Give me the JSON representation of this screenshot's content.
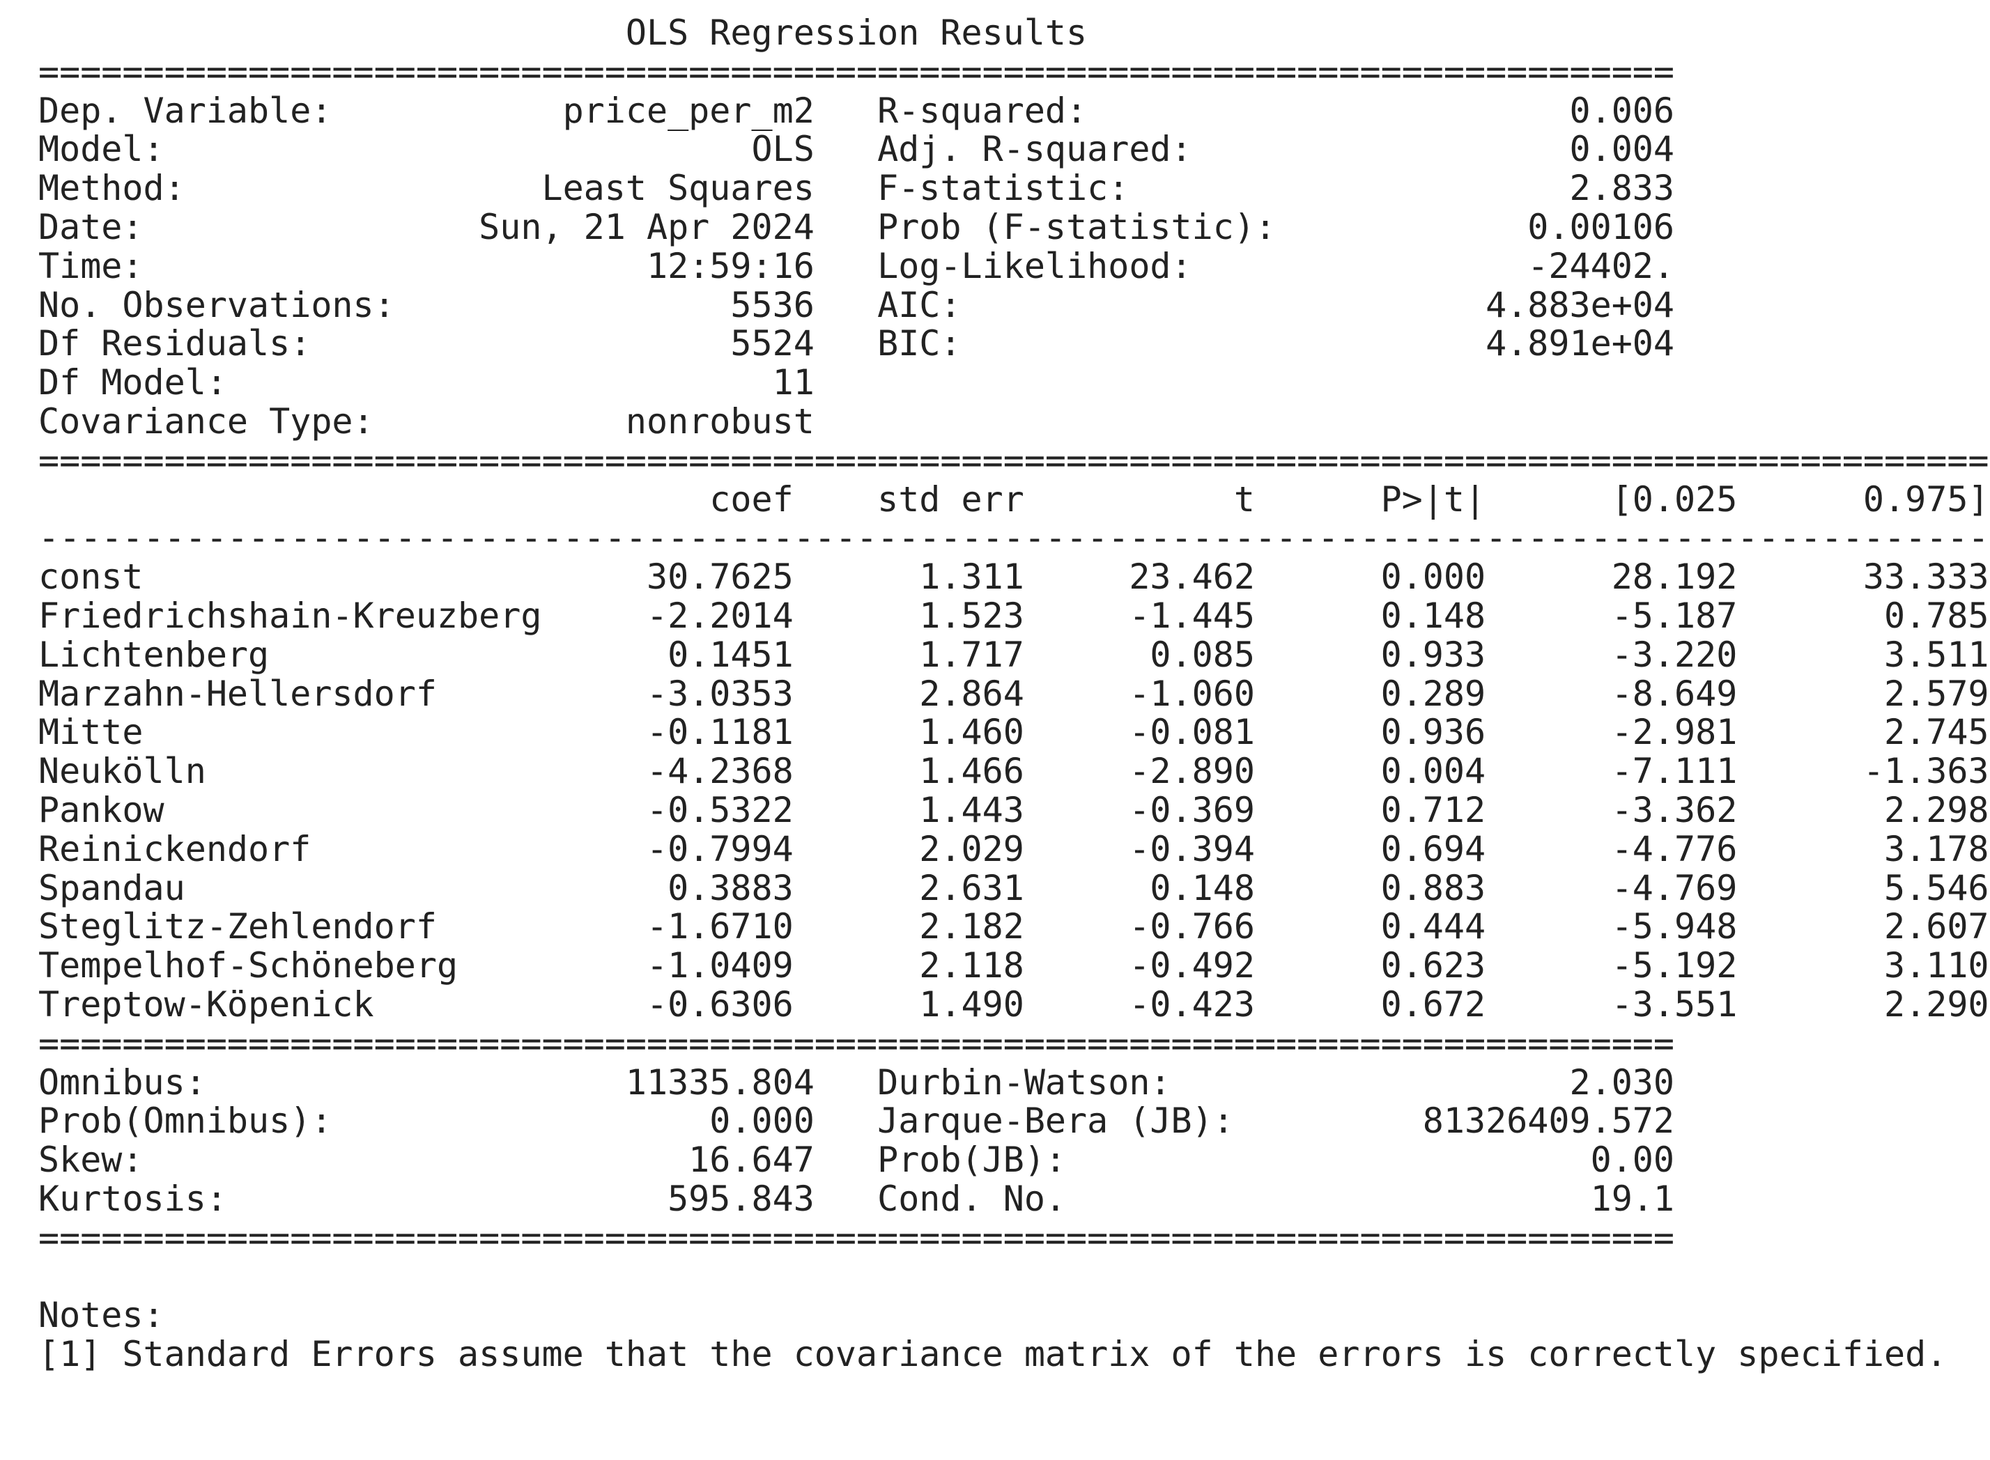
{
  "title": "OLS Regression Results",
  "summary": {
    "rows": [
      {
        "label_left": "Dep. Variable:",
        "value_left": "price_per_m2",
        "label_right": "R-squared:",
        "value_right": "0.006"
      },
      {
        "label_left": "Model:",
        "value_left": "OLS",
        "label_right": "Adj. R-squared:",
        "value_right": "0.004"
      },
      {
        "label_left": "Method:",
        "value_left": "Least Squares",
        "label_right": "F-statistic:",
        "value_right": "2.833"
      },
      {
        "label_left": "Date:",
        "value_left": "Sun, 21 Apr 2024",
        "label_right": "Prob (F-statistic):",
        "value_right": "0.00106"
      },
      {
        "label_left": "Time:",
        "value_left": "12:59:16",
        "label_right": "Log-Likelihood:",
        "value_right": "-24402."
      },
      {
        "label_left": "No. Observations:",
        "value_left": "5536",
        "label_right": "AIC:",
        "value_right": "4.883e+04"
      },
      {
        "label_left": "Df Residuals:",
        "value_left": "5524",
        "label_right": "BIC:",
        "value_right": "4.891e+04"
      },
      {
        "label_left": "Df Model:",
        "value_left": "11",
        "label_right": "",
        "value_right": ""
      },
      {
        "label_left": "Covariance Type:",
        "value_left": "nonrobust",
        "label_right": "",
        "value_right": ""
      }
    ]
  },
  "coefficients": {
    "headers": [
      "coef",
      "std err",
      "t",
      "P>|t|",
      "[0.025",
      "0.975]"
    ],
    "rows": [
      {
        "name": "const",
        "values": [
          "30.7625",
          "1.311",
          "23.462",
          "0.000",
          "28.192",
          "33.333"
        ]
      },
      {
        "name": "Friedrichshain-Kreuzberg",
        "values": [
          "-2.2014",
          "1.523",
          "-1.445",
          "0.148",
          "-5.187",
          "0.785"
        ]
      },
      {
        "name": "Lichtenberg",
        "values": [
          "0.1451",
          "1.717",
          "0.085",
          "0.933",
          "-3.220",
          "3.511"
        ]
      },
      {
        "name": "Marzahn-Hellersdorf",
        "values": [
          "-3.0353",
          "2.864",
          "-1.060",
          "0.289",
          "-8.649",
          "2.579"
        ]
      },
      {
        "name": "Mitte",
        "values": [
          "-0.1181",
          "1.460",
          "-0.081",
          "0.936",
          "-2.981",
          "2.745"
        ]
      },
      {
        "name": "Neukölln",
        "values": [
          "-4.2368",
          "1.466",
          "-2.890",
          "0.004",
          "-7.111",
          "-1.363"
        ]
      },
      {
        "name": "Pankow",
        "values": [
          "-0.5322",
          "1.443",
          "-0.369",
          "0.712",
          "-3.362",
          "2.298"
        ]
      },
      {
        "name": "Reinickendorf",
        "values": [
          "-0.7994",
          "2.029",
          "-0.394",
          "0.694",
          "-4.776",
          "3.178"
        ]
      },
      {
        "name": "Spandau",
        "values": [
          "0.3883",
          "2.631",
          "0.148",
          "0.883",
          "-4.769",
          "5.546"
        ]
      },
      {
        "name": "Steglitz-Zehlendorf",
        "values": [
          "-1.6710",
          "2.182",
          "-0.766",
          "0.444",
          "-5.948",
          "2.607"
        ]
      },
      {
        "name": "Tempelhof-Schöneberg",
        "values": [
          "-1.0409",
          "2.118",
          "-0.492",
          "0.623",
          "-5.192",
          "3.110"
        ]
      },
      {
        "name": "Treptow-Köpenick",
        "values": [
          "-0.6306",
          "1.490",
          "-0.423",
          "0.672",
          "-3.551",
          "2.290"
        ]
      }
    ]
  },
  "diagnostics": {
    "rows": [
      {
        "label_left": "Omnibus:",
        "value_left": "11335.804",
        "label_right": "Durbin-Watson:",
        "value_right": "2.030"
      },
      {
        "label_left": "Prob(Omnibus):",
        "value_left": "0.000",
        "label_right": "Jarque-Bera (JB):",
        "value_right": "81326409.572"
      },
      {
        "label_left": "Skew:",
        "value_left": "16.647",
        "label_right": "Prob(JB):",
        "value_right": "0.00"
      },
      {
        "label_left": "Kurtosis:",
        "value_left": "595.843",
        "label_right": "Cond. No.",
        "value_right": "19.1"
      }
    ]
  },
  "notes": {
    "heading": "Notes:",
    "items": [
      "[1] Standard Errors assume that the covariance matrix of the errors is correctly specified."
    ]
  }
}
